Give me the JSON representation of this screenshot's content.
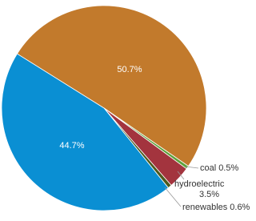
{
  "chart_data": {
    "type": "pie",
    "categories": [
      null,
      "coal",
      "hydroelectric",
      "renewables",
      null
    ],
    "values": [
      50.7,
      0.5,
      3.5,
      0.6,
      44.7
    ],
    "value_labels": [
      "50.7%",
      "0.5%",
      "3.5%",
      "0.6%",
      "44.7%"
    ],
    "colors": [
      "#c27a2c",
      "#5da13a",
      "#a3343e",
      "#4d5a1e",
      "#0a8fd3"
    ]
  }
}
